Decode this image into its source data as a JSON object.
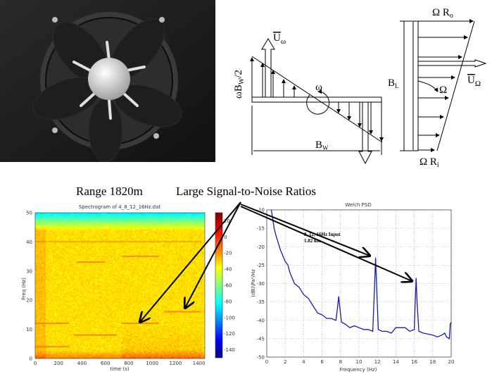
{
  "diagram": {
    "u_omega": "U",
    "u_omega_sub": "ω",
    "omega_bw2": "ωB",
    "omega_bw2_sub": "W",
    "omega_bw2_tail": "/2",
    "omega": "ω",
    "bw": "B",
    "bw_sub": "W",
    "bl": "B",
    "bl_sub": "L",
    "omega_ro": "Ω R",
    "omega_ro_sub": "o",
    "omega_ri": "Ω R",
    "omega_ri_sub": "i",
    "u_Omega": "U",
    "u_Omega_sub": "Ω",
    "Omega": "Ω"
  },
  "annotations": {
    "range": "Range 1820m",
    "snr": "Large Signal-to-Noise Ratios",
    "psd_note_1": "8, 12, 16Hz Input",
    "psd_note_2": "1.82 km"
  },
  "chart_data": [
    {
      "type": "heatmap",
      "title": "Spectrogram of 4_8_12_16Hz.dat",
      "xlabel": "time (s)",
      "ylabel": "Freq (Hz)",
      "xlim": [
        0,
        1450
      ],
      "ylim": [
        0,
        50
      ],
      "xticks": [
        "0",
        "200",
        "400",
        "600",
        "800",
        "1000",
        "1200",
        "1400"
      ],
      "yticks": [
        "0",
        "10",
        "20",
        "30",
        "40",
        "50"
      ],
      "colorbar": {
        "range": [
          -150,
          30
        ],
        "ticks": [
          "20",
          "0",
          "-20",
          "-40",
          "-60",
          "-80",
          "-100",
          "-120",
          "-140"
        ],
        "colormap": "jet"
      },
      "tonal_lines": [
        {
          "t_start": 0,
          "t_end": 290,
          "freq": 12
        },
        {
          "t_start": 0,
          "t_end": 290,
          "freq": 4
        },
        {
          "t_start": 330,
          "t_end": 700,
          "freq": 8
        },
        {
          "t_start": 360,
          "t_end": 600,
          "freq": 33
        },
        {
          "t_start": 740,
          "t_end": 1060,
          "freq": 12
        },
        {
          "t_start": 740,
          "t_end": 1060,
          "freq": 35
        },
        {
          "t_start": 1100,
          "t_end": 1420,
          "freq": 16
        },
        {
          "t_start": 0,
          "t_end": 1420,
          "freq": 40
        }
      ]
    },
    {
      "type": "line",
      "title": "Welch PSD",
      "xlabel": "Frequency (Hz)",
      "ylabel": "(dB)\\Pa²/Hz",
      "xlim": [
        0,
        20
      ],
      "ylim": [
        -50,
        -10
      ],
      "grid": true,
      "xticks": [
        "0",
        "2",
        "4",
        "6",
        "8",
        "10",
        "12",
        "14",
        "16",
        "18",
        "20"
      ],
      "yticks": [
        "-10",
        "-15",
        "-20",
        "-25",
        "-30",
        "-35",
        "-40",
        "-45",
        "-50"
      ],
      "color": "#1a1aa8",
      "x": [
        0.5,
        0.8,
        1,
        1.5,
        2,
        2.3,
        2.5,
        3,
        3.5,
        4,
        4.5,
        5,
        5.5,
        6,
        6.5,
        7,
        7.5,
        7.7,
        7.8,
        7.9,
        8.1,
        8.5,
        9,
        9.5,
        10,
        10.5,
        11,
        11.5,
        11.7,
        11.8,
        11.9,
        12.1,
        12.5,
        13,
        13.5,
        14,
        15,
        15.5,
        16,
        16.1,
        16.2,
        16.3,
        16.5,
        17,
        18,
        18.5,
        19,
        19.3,
        19.5,
        19.8,
        19.9,
        20
      ],
      "y": [
        -10,
        -15,
        -17,
        -21,
        -24,
        -25,
        -27,
        -30,
        -31,
        -33,
        -34,
        -36,
        -38,
        -38.5,
        -39.5,
        -39.5,
        -40,
        -36,
        -33.5,
        -36,
        -40.5,
        -41,
        -42,
        -41.5,
        -42,
        -42.5,
        -42.5,
        -43,
        -30,
        -23,
        -30,
        -42.5,
        -43,
        -43,
        -43.5,
        -42,
        -42,
        -43,
        -42.5,
        -35,
        -28.5,
        -35,
        -43,
        -43.5,
        -44,
        -44.5,
        -44,
        -43.5,
        -44.5,
        -45,
        -41,
        -40.5
      ]
    }
  ]
}
